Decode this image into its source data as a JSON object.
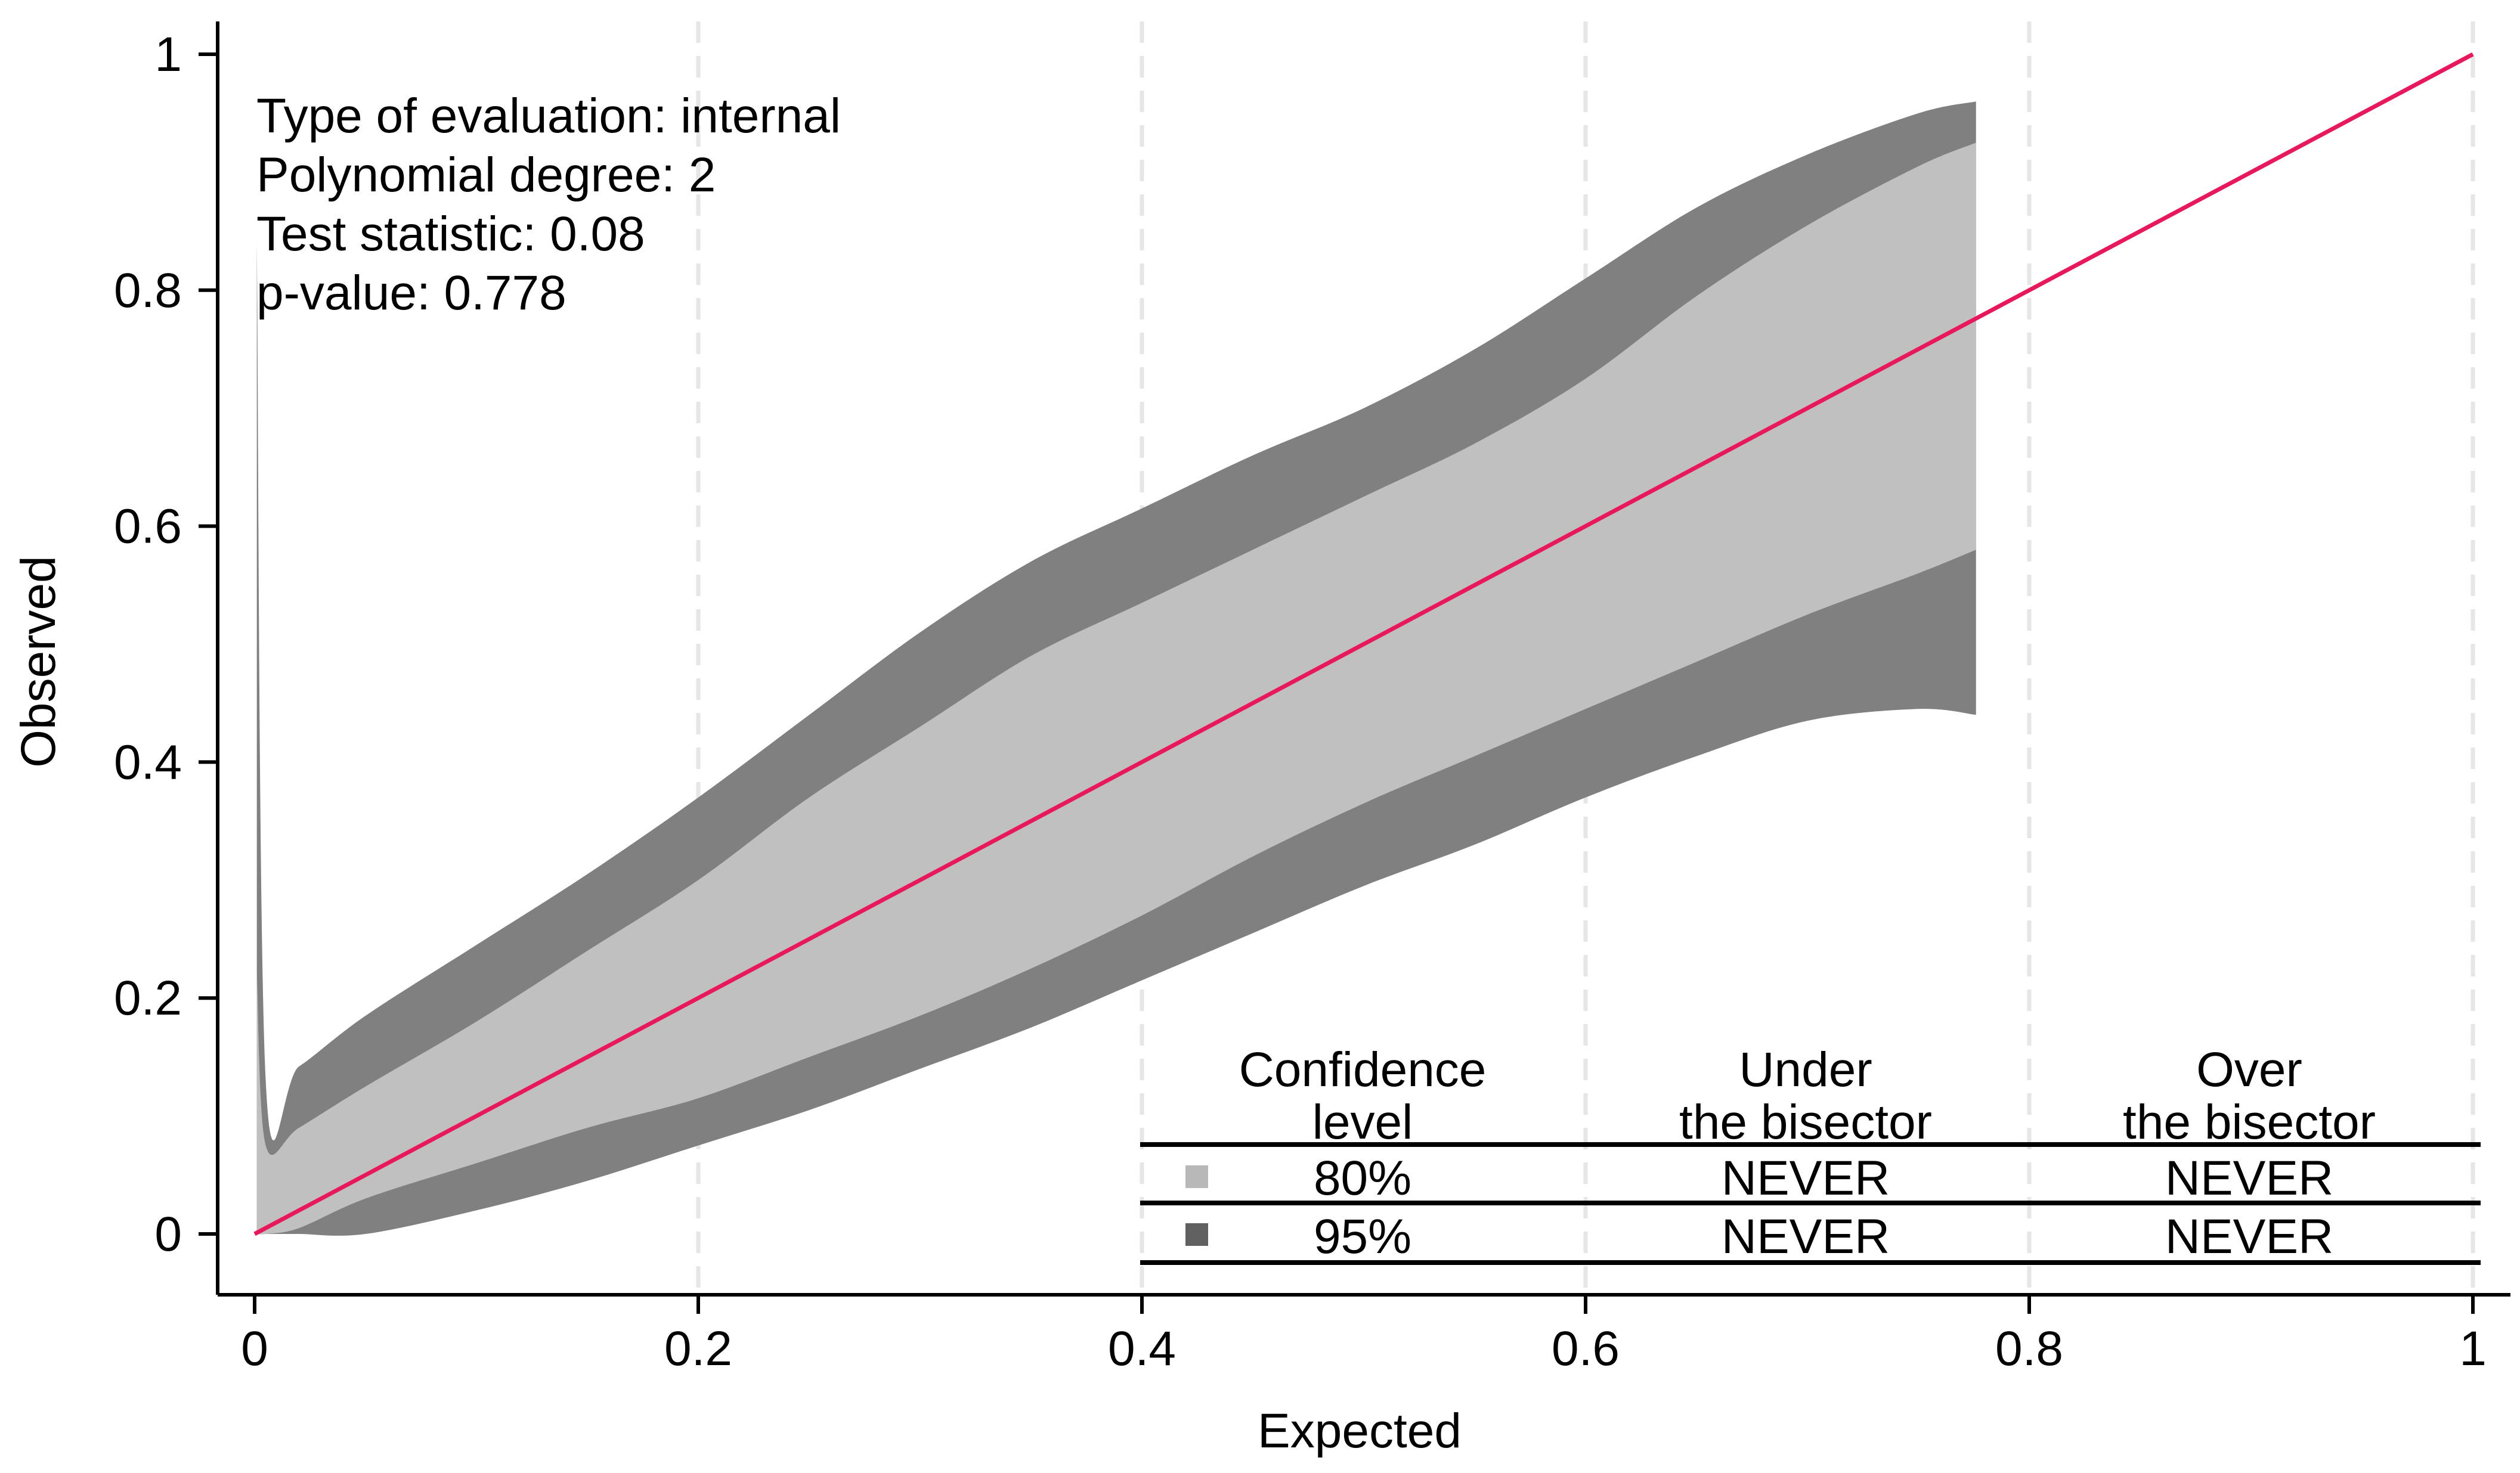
{
  "chart_data": {
    "type": "area",
    "title": "",
    "xlabel": "Expected",
    "ylabel": "Observed",
    "xlim": [
      0,
      1
    ],
    "ylim": [
      0,
      1
    ],
    "x_ticks": [
      0,
      0.2,
      0.4,
      0.6,
      0.8,
      1
    ],
    "x_tick_labels": [
      "0",
      "0.2",
      "0.4",
      "0.6",
      "0.8",
      "1"
    ],
    "y_ticks": [
      0,
      0.2,
      0.4,
      0.6,
      0.8,
      1
    ],
    "y_tick_labels": [
      "0",
      "0.2",
      "0.4",
      "0.6",
      "0.8",
      "1"
    ],
    "vertical_grid": "dashed at x ticks",
    "colors": {
      "band80": "#c0c0c0",
      "band95": "#808080",
      "bisector": "#e8185a",
      "legend80": "#b8b8b8",
      "legend95": "#606060"
    },
    "bands": {
      "x": [
        0.001,
        0.005,
        0.02,
        0.05,
        0.1,
        0.15,
        0.2,
        0.25,
        0.3,
        0.35,
        0.4,
        0.45,
        0.5,
        0.55,
        0.6,
        0.65,
        0.7,
        0.75,
        0.776
      ],
      "upper95": [
        0.84,
        0.13,
        0.142,
        0.185,
        0.245,
        0.305,
        0.37,
        0.44,
        0.51,
        0.57,
        0.615,
        0.66,
        0.7,
        0.75,
        0.81,
        0.87,
        0.915,
        0.95,
        0.96
      ],
      "upper80": [
        0.22,
        0.075,
        0.09,
        0.125,
        0.18,
        0.24,
        0.3,
        0.37,
        0.43,
        0.49,
        0.535,
        0.58,
        0.625,
        0.67,
        0.725,
        0.795,
        0.855,
        0.905,
        0.925
      ],
      "lower80": [
        0.0,
        0.0,
        0.005,
        0.03,
        0.06,
        0.09,
        0.115,
        0.15,
        0.185,
        0.225,
        0.27,
        0.32,
        0.365,
        0.405,
        0.445,
        0.485,
        0.525,
        0.56,
        0.58
      ],
      "lower95": [
        0.0,
        0.0,
        0.0,
        0.0,
        0.02,
        0.045,
        0.075,
        0.105,
        0.14,
        0.175,
        0.215,
        0.255,
        0.295,
        0.33,
        0.37,
        0.405,
        0.435,
        0.445,
        0.44
      ]
    },
    "bisector": {
      "x": [
        0,
        1
      ],
      "y": [
        0,
        1
      ]
    }
  },
  "annotation": {
    "lines": [
      "Type of evaluation: internal",
      "Polynomial degree: 2",
      "Test statistic: 0.08",
      "p-value: 0.778"
    ]
  },
  "table": {
    "col1_header": [
      "Confidence",
      "level"
    ],
    "col2_header": [
      "Under",
      "the bisector"
    ],
    "col3_header": [
      "Over",
      "the bisector"
    ],
    "rows": [
      {
        "level": "80%",
        "under": "NEVER",
        "over": "NEVER",
        "swatch": "legend80"
      },
      {
        "level": "95%",
        "under": "NEVER",
        "over": "NEVER",
        "swatch": "legend95"
      }
    ]
  }
}
